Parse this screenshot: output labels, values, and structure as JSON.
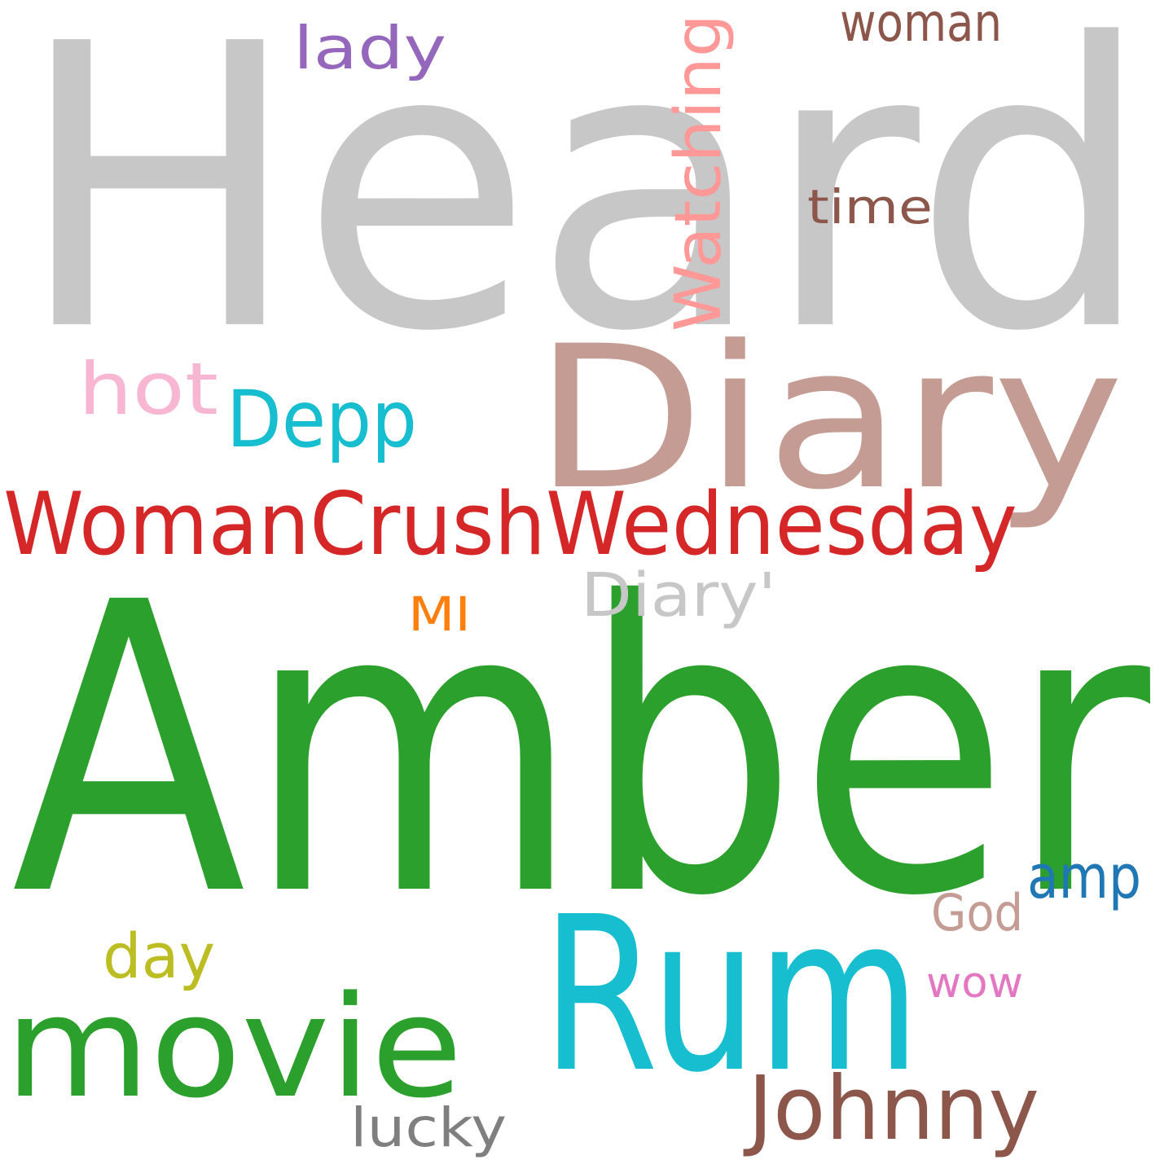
{
  "words": [
    {
      "text": "Heard",
      "color": "#c7c7c7"
    },
    {
      "text": "Amber",
      "color": "#2ca02c"
    },
    {
      "text": "Diary",
      "color": "#c49c94"
    },
    {
      "text": "Rum",
      "color": "#17becf"
    },
    {
      "text": "WomanCrushWednesday",
      "color": "#d62728"
    },
    {
      "text": "movie",
      "color": "#2ca02c"
    },
    {
      "text": "Johnny",
      "color": "#8c564b"
    },
    {
      "text": "Depp",
      "color": "#17becf"
    },
    {
      "text": "Watching",
      "color": "#ff9896"
    },
    {
      "text": "hot",
      "color": "#f7b6d2"
    },
    {
      "text": "lady",
      "color": "#9467bd"
    },
    {
      "text": "woman",
      "color": "#8c564b"
    },
    {
      "text": "time",
      "color": "#8c564b"
    },
    {
      "text": "Diary'",
      "color": "#c7c7c7"
    },
    {
      "text": "MI",
      "color": "#ff7f0e"
    },
    {
      "text": "amp",
      "color": "#1f77b4"
    },
    {
      "text": "God",
      "color": "#c49c94"
    },
    {
      "text": "day",
      "color": "#bcbd22"
    },
    {
      "text": "wow",
      "color": "#e377c2"
    },
    {
      "text": "lucky",
      "color": "#7f7f7f"
    }
  ]
}
